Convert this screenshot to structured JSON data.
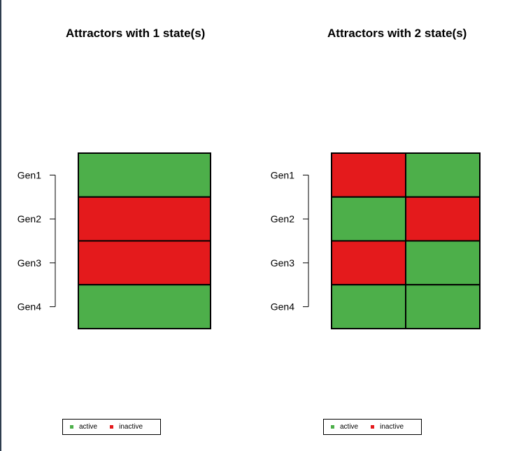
{
  "colors": {
    "active": "#4daf4a",
    "inactive": "#e41a1c"
  },
  "chart_data": [
    {
      "type": "heatmap",
      "title": "Attractors with 1 state(s)",
      "genes": [
        "Gen1",
        "Gen2",
        "Gen3",
        "Gen4"
      ],
      "states": 1,
      "values": [
        [
          1
        ],
        [
          0
        ],
        [
          0
        ],
        [
          1
        ]
      ],
      "legend": [
        {
          "label": "active",
          "color": "#4daf4a"
        },
        {
          "label": "inactive",
          "color": "#e41a1c"
        }
      ],
      "legend_position": "bottom-left"
    },
    {
      "type": "heatmap",
      "title": "Attractors with 2 state(s)",
      "genes": [
        "Gen1",
        "Gen2",
        "Gen3",
        "Gen4"
      ],
      "states": 2,
      "values": [
        [
          0,
          1
        ],
        [
          1,
          0
        ],
        [
          0,
          1
        ],
        [
          1,
          1
        ]
      ],
      "legend": [
        {
          "label": "active",
          "color": "#4daf4a"
        },
        {
          "label": "inactive",
          "color": "#e41a1c"
        }
      ],
      "legend_position": "bottom-left"
    }
  ]
}
